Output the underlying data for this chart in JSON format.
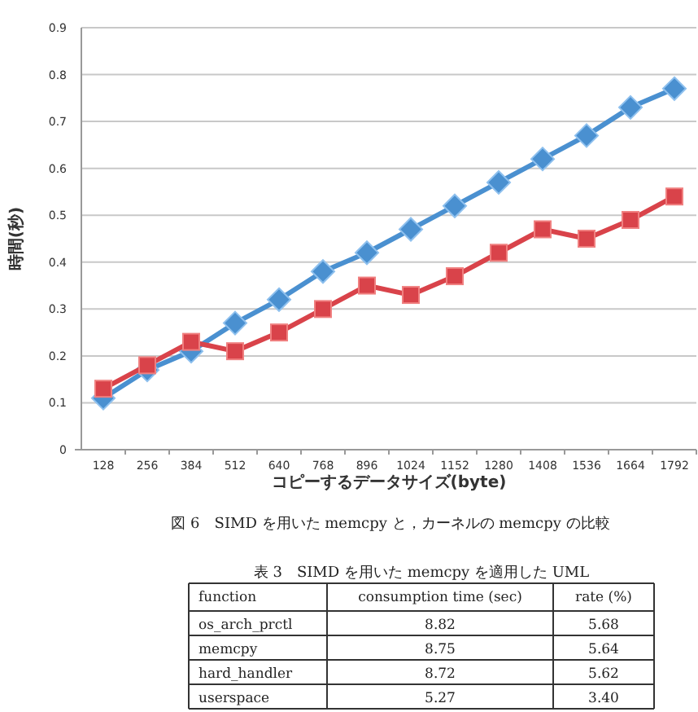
{
  "chart_data": [
    {
      "type": "line",
      "xlabel": "コピーするデータサイズ(byte)",
      "ylabel": "時間(秒)",
      "categories": [
        "128",
        "256",
        "384",
        "512",
        "640",
        "768",
        "896",
        "1024",
        "1152",
        "1280",
        "1408",
        "1536",
        "1664",
        "1792"
      ],
      "series": [
        {
          "color": "#4a90d0",
          "marker": "diamond",
          "values": [
            0.11,
            0.17,
            0.21,
            0.27,
            0.32,
            0.38,
            0.42,
            0.47,
            0.52,
            0.57,
            0.62,
            0.67,
            0.73,
            0.77
          ]
        },
        {
          "color": "#d9434a",
          "marker": "square",
          "values": [
            0.13,
            0.18,
            0.23,
            0.21,
            0.25,
            0.3,
            0.35,
            0.33,
            0.37,
            0.42,
            0.47,
            0.45,
            0.49,
            0.54
          ]
        }
      ],
      "ylim": [
        0,
        0.9
      ],
      "yticks": [
        0,
        0.1,
        0.2,
        0.3,
        0.4,
        0.5,
        0.6,
        0.7,
        0.8,
        0.9
      ],
      "grid": "y",
      "annotations": [
        "図 6　SIMD を用いた memcpy と，カーネルの memcpy の比較"
      ]
    },
    {
      "type": "other",
      "title": "表 3　SIMD を用いた memcpy を適用した UML",
      "annotations": [
        "function",
        "consumption time (sec)",
        "rate (%)",
        "os_arch_prctl",
        "8.82",
        "5.68",
        "memcpy",
        "8.75",
        "5.64",
        "hard_handler",
        "8.72",
        "5.62",
        "userspace",
        "5.27",
        "3.40"
      ]
    }
  ]
}
